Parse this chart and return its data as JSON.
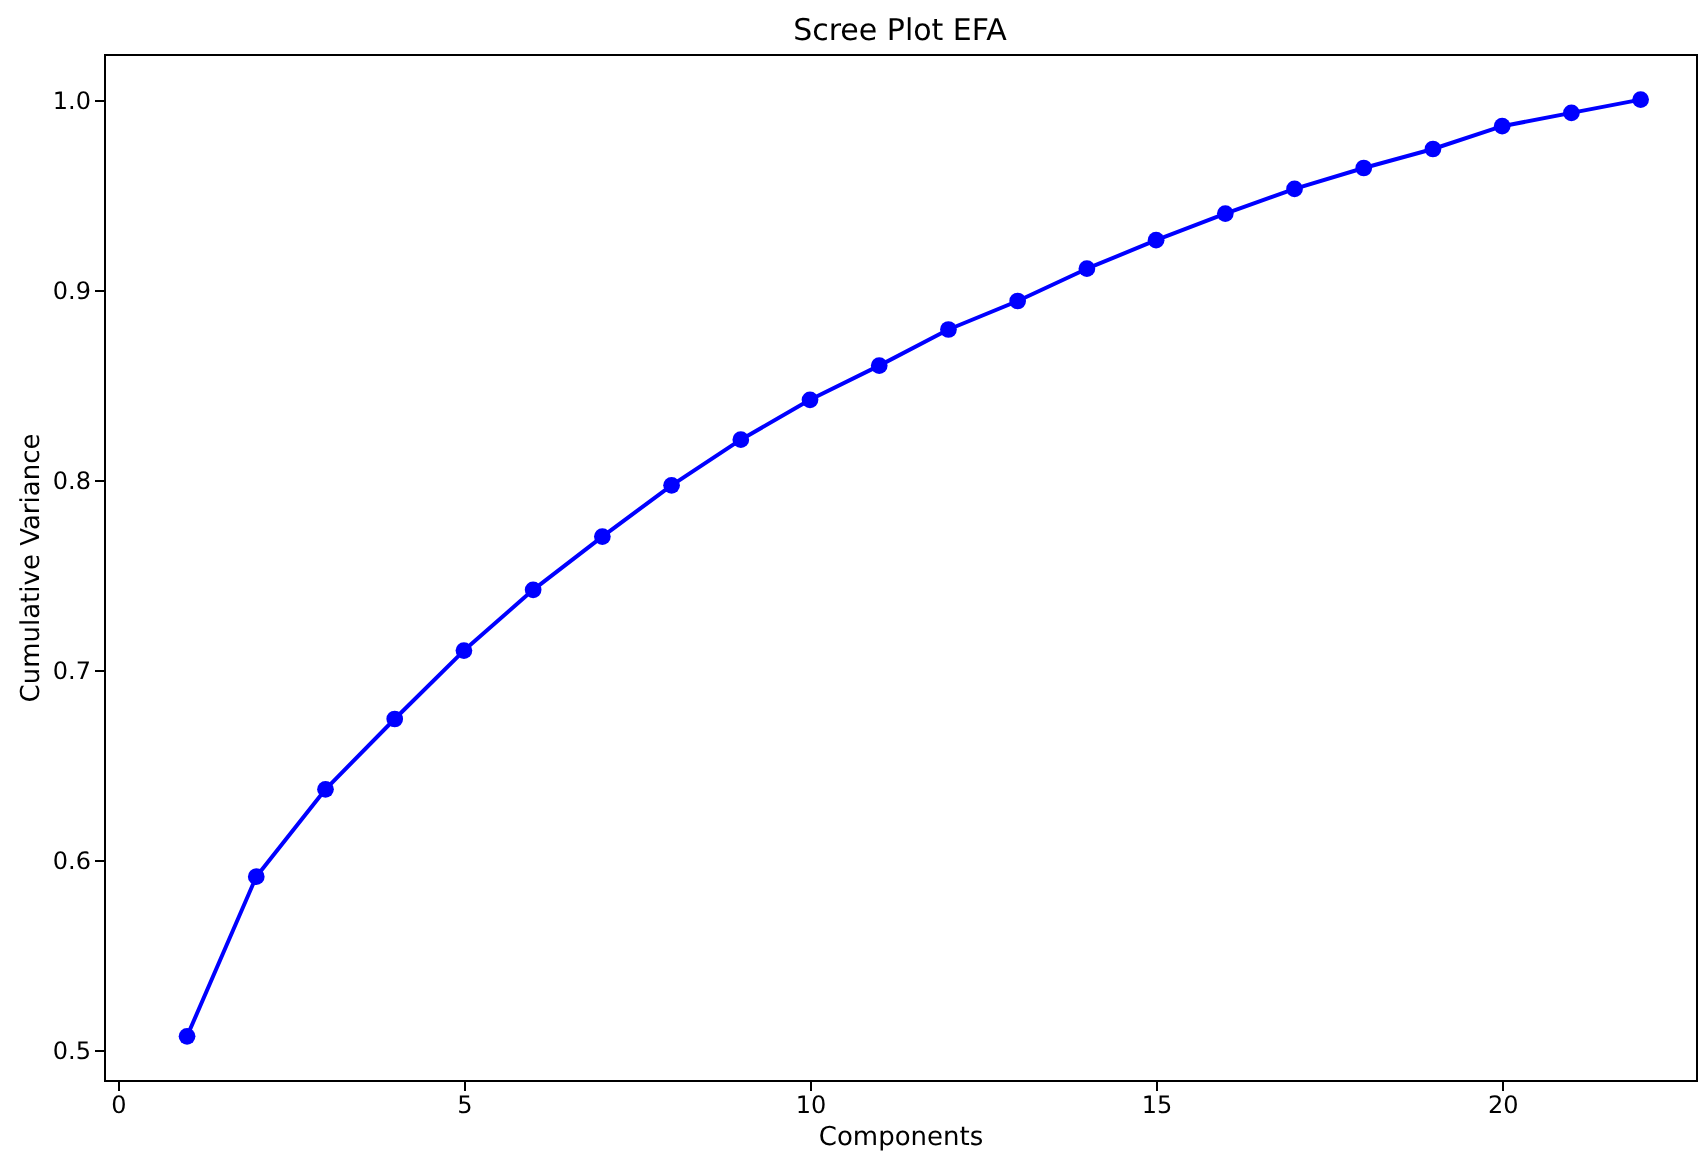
{
  "chart_data": {
    "type": "line",
    "title": "Scree Plot EFA",
    "xlabel": "Components",
    "ylabel": "Cumulative Variance",
    "x": [
      1,
      2,
      3,
      4,
      5,
      6,
      7,
      8,
      9,
      10,
      11,
      12,
      13,
      14,
      15,
      16,
      17,
      18,
      19,
      20,
      21,
      22
    ],
    "series": [
      {
        "color": "#0000ff",
        "values": [
          0.507,
          0.591,
          0.637,
          0.674,
          0.71,
          0.742,
          0.77,
          0.797,
          0.821,
          0.842,
          0.86,
          0.879,
          0.894,
          0.911,
          0.926,
          0.94,
          0.953,
          0.964,
          0.974,
          0.986,
          0.993,
          1.0
        ]
      }
    ],
    "xlim": [
      -0.2,
      22.8
    ],
    "xticks": [
      0,
      5,
      10,
      15,
      20
    ],
    "ylim": [
      0.484,
      1.024
    ],
    "yticks": [
      0.5,
      0.6,
      0.7,
      0.8,
      0.9,
      {
        "value": 1,
        "label": "1.0"
      }
    ],
    "marker": "circle",
    "line_style": "solid",
    "grid": false,
    "legend": false
  }
}
